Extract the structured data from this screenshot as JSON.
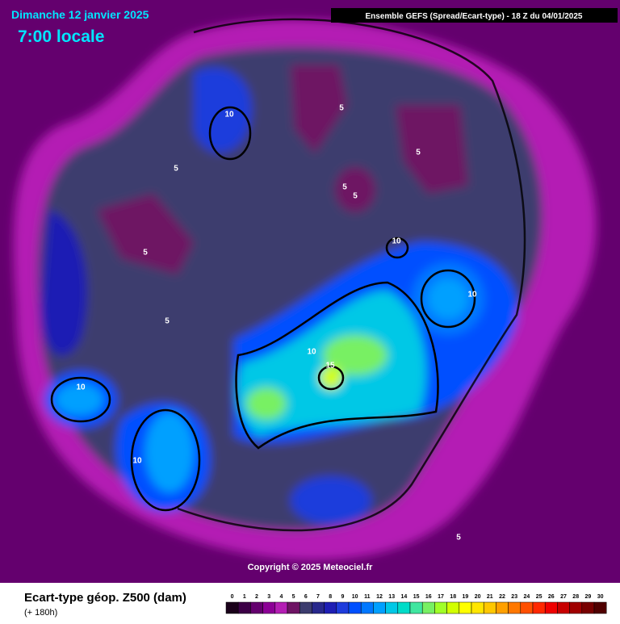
{
  "header": {
    "date": "Dimanche 12 janvier 2025",
    "time": "7:00 locale",
    "source": "Ensemble GEFS  (Spread/Ecart-type) - 18 Z du 04/01/2025"
  },
  "map": {
    "contour_labels": [
      "10",
      "5",
      "5",
      "5",
      "5",
      "5",
      "5",
      "10",
      "10",
      "5",
      "10",
      "15",
      "10",
      "10",
      "5"
    ],
    "copyright": "Copyright © 2025 Meteociel.fr"
  },
  "legend": {
    "title": "Ecart-type géop. Z500 (dam)",
    "subtitle": "(+ 180h)",
    "scale": [
      {
        "label": 0,
        "color": "#1a001a"
      },
      {
        "label": 1,
        "color": "#3c0046"
      },
      {
        "label": 2,
        "color": "#64006e"
      },
      {
        "label": 3,
        "color": "#8c0096"
      },
      {
        "label": 4,
        "color": "#b41eb4"
      },
      {
        "label": 5,
        "color": "#6e1464"
      },
      {
        "label": 6,
        "color": "#3c3c6e"
      },
      {
        "label": 7,
        "color": "#28288c"
      },
      {
        "label": 8,
        "color": "#1e1eb4"
      },
      {
        "label": 9,
        "color": "#1e3cdc"
      },
      {
        "label": 10,
        "color": "#0050ff"
      },
      {
        "label": 11,
        "color": "#0078ff"
      },
      {
        "label": 12,
        "color": "#00a0ff"
      },
      {
        "label": 13,
        "color": "#00c8e6"
      },
      {
        "label": 14,
        "color": "#00dcc8"
      },
      {
        "label": 15,
        "color": "#40e6a0"
      },
      {
        "label": 16,
        "color": "#78f064"
      },
      {
        "label": 17,
        "color": "#a0ff28"
      },
      {
        "label": 18,
        "color": "#d2ff00"
      },
      {
        "label": 19,
        "color": "#ffff00"
      },
      {
        "label": 20,
        "color": "#ffe600"
      },
      {
        "label": 21,
        "color": "#ffc800"
      },
      {
        "label": 22,
        "color": "#ffa000"
      },
      {
        "label": 23,
        "color": "#ff7800"
      },
      {
        "label": 24,
        "color": "#ff5000"
      },
      {
        "label": 25,
        "color": "#ff2800"
      },
      {
        "label": 26,
        "color": "#f00000"
      },
      {
        "label": 27,
        "color": "#c80000"
      },
      {
        "label": 28,
        "color": "#a00000"
      },
      {
        "label": 29,
        "color": "#780000"
      },
      {
        "label": 30,
        "color": "#500000"
      }
    ]
  }
}
